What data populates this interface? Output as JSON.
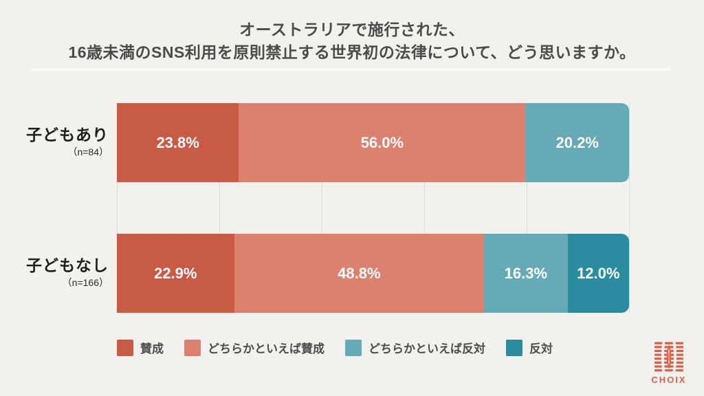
{
  "title": {
    "line1": "オーストラリアで施行された、",
    "line2": "16歳未満のSNS利用を原則禁止する世界初の法律について、どう思いますか。"
  },
  "colors": {
    "background": "#F2F1ED",
    "divider": "#FBFAF7",
    "gridline": "#DEDCD7",
    "title_text": "#4B4B4B",
    "value_label_text": "#FFFFFF",
    "logo_accent": "#D9604A"
  },
  "chart_data": {
    "type": "bar",
    "stacked": true,
    "orientation": "horizontal",
    "xlim": [
      0,
      100
    ],
    "gridlines_percent": [
      0,
      20,
      40,
      60,
      80,
      100
    ],
    "legend_position": "bottom",
    "categories": [
      "子どもあり",
      "子どもなし"
    ],
    "category_notes": [
      "（n=84）",
      "（n=166）"
    ],
    "series": [
      {
        "name": "賛成",
        "color": "#C95B45",
        "values": [
          23.8,
          22.9
        ],
        "labels": [
          "23.8%",
          "22.9%"
        ]
      },
      {
        "name": "どちらかといえば賛成",
        "color": "#DC8170",
        "values": [
          56.0,
          48.8
        ],
        "labels": [
          "56.0%",
          "48.8%"
        ]
      },
      {
        "name": "どちらかといえば反対",
        "color": "#66AAB8",
        "values": [
          20.2,
          16.3
        ],
        "labels": [
          "20.2%",
          "16.3%"
        ]
      },
      {
        "name": "反対",
        "color": "#2A8C9E",
        "values": [
          0.0,
          12.0
        ],
        "labels": [
          "",
          "12.0%"
        ]
      }
    ]
  },
  "logo": {
    "text": "CHOIX"
  }
}
